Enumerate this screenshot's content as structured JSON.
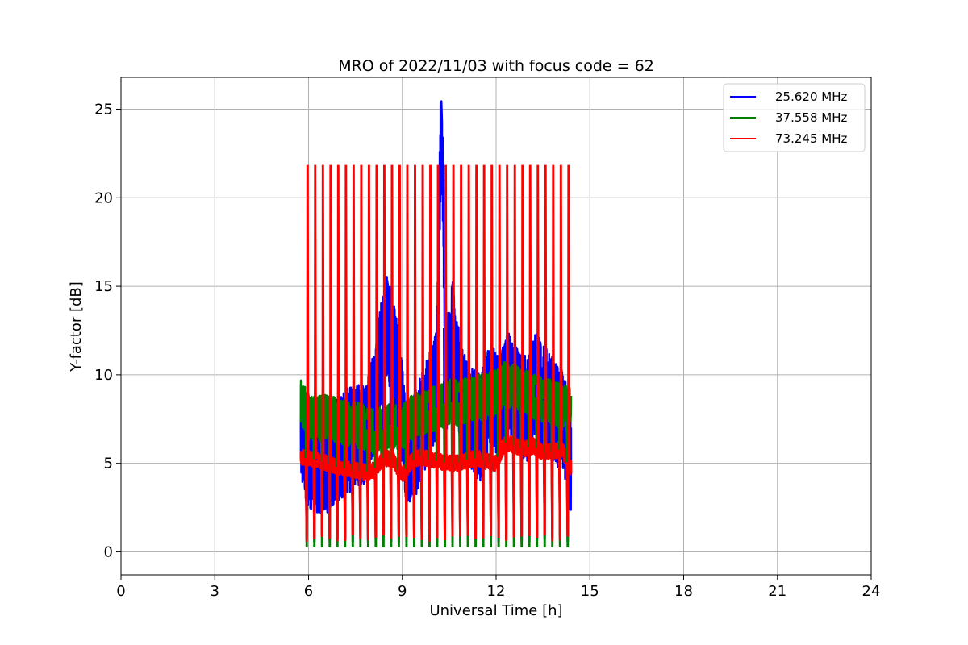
{
  "chart_data": {
    "type": "line",
    "title": "MRO of 2022/11/03 with focus code = 62",
    "xlabel": "Universal Time [h]",
    "ylabel": "Y-factor [dB]",
    "xlim": [
      0,
      24
    ],
    "ylim": [
      -1.3,
      26.8
    ],
    "xticks": [
      0,
      3,
      6,
      9,
      12,
      15,
      18,
      21,
      24
    ],
    "yticks": [
      0,
      5,
      10,
      15,
      20,
      25
    ],
    "grid": true,
    "legend_position": "top-right",
    "series": [
      {
        "name": "25.620 MHz",
        "color": "#0000ff",
        "x": [
          5.75,
          6.0,
          6.3,
          6.6,
          6.9,
          7.2,
          7.5,
          7.8,
          8.1,
          8.3,
          8.5,
          8.7,
          8.9,
          9.1,
          9.3,
          9.6,
          9.9,
          10.1,
          10.25,
          10.4,
          10.6,
          10.9,
          11.2,
          11.5,
          11.8,
          12.1,
          12.4,
          12.7,
          13.0,
          13.3,
          13.6,
          13.9,
          14.2,
          14.4
        ],
        "values": [
          6.5,
          5.5,
          5.0,
          5.2,
          5.8,
          6.2,
          6.5,
          6.8,
          8.5,
          11.0,
          13.0,
          11.5,
          9.5,
          6.0,
          5.5,
          7.0,
          8.5,
          9.5,
          25.5,
          9.5,
          12.5,
          8.5,
          7.5,
          7.0,
          9.0,
          8.0,
          9.5,
          8.5,
          8.0,
          9.5,
          8.5,
          8.0,
          7.0,
          5.0
        ]
      },
      {
        "name": "37.558 MHz",
        "color": "#008000",
        "x": [
          5.75,
          6.0,
          6.3,
          6.6,
          6.9,
          7.2,
          7.5,
          7.8,
          8.1,
          8.4,
          8.7,
          9.0,
          9.3,
          9.6,
          9.9,
          10.2,
          10.5,
          10.8,
          11.1,
          11.4,
          11.7,
          12.0,
          12.3,
          12.6,
          12.9,
          13.2,
          13.5,
          13.8,
          14.1,
          14.4
        ],
        "values": [
          8.5,
          7.6,
          7.5,
          7.6,
          7.4,
          7.3,
          7.2,
          7.0,
          6.8,
          6.9,
          7.2,
          7.0,
          7.6,
          7.8,
          8.0,
          8.2,
          8.5,
          8.4,
          8.6,
          8.7,
          8.8,
          9.0,
          9.5,
          9.3,
          9.0,
          8.8,
          8.6,
          8.4,
          8.2,
          8.0
        ]
      },
      {
        "name": "73.245 MHz",
        "color": "#ff0000",
        "x": [
          5.75,
          6.0,
          6.3,
          6.6,
          6.9,
          7.2,
          7.5,
          7.8,
          8.1,
          8.4,
          8.7,
          9.0,
          9.3,
          9.6,
          9.9,
          10.2,
          10.5,
          10.8,
          11.1,
          11.4,
          11.7,
          12.0,
          12.3,
          12.6,
          12.9,
          13.2,
          13.5,
          13.8,
          14.1,
          14.4
        ],
        "values": [
          5.3,
          5.3,
          5.2,
          5.0,
          4.8,
          4.7,
          4.6,
          4.5,
          4.6,
          5.3,
          5.2,
          4.3,
          5.1,
          5.4,
          5.2,
          5.1,
          5.0,
          5.0,
          5.2,
          5.3,
          5.1,
          5.0,
          6.2,
          6.0,
          5.8,
          6.0,
          5.6,
          5.7,
          5.8,
          4.7
        ]
      }
    ],
    "calibration_bursts": {
      "description_x_range": [
        5.95,
        14.3
      ],
      "count": 35,
      "peak_value": 21.8,
      "low_value": 0.3
    }
  }
}
